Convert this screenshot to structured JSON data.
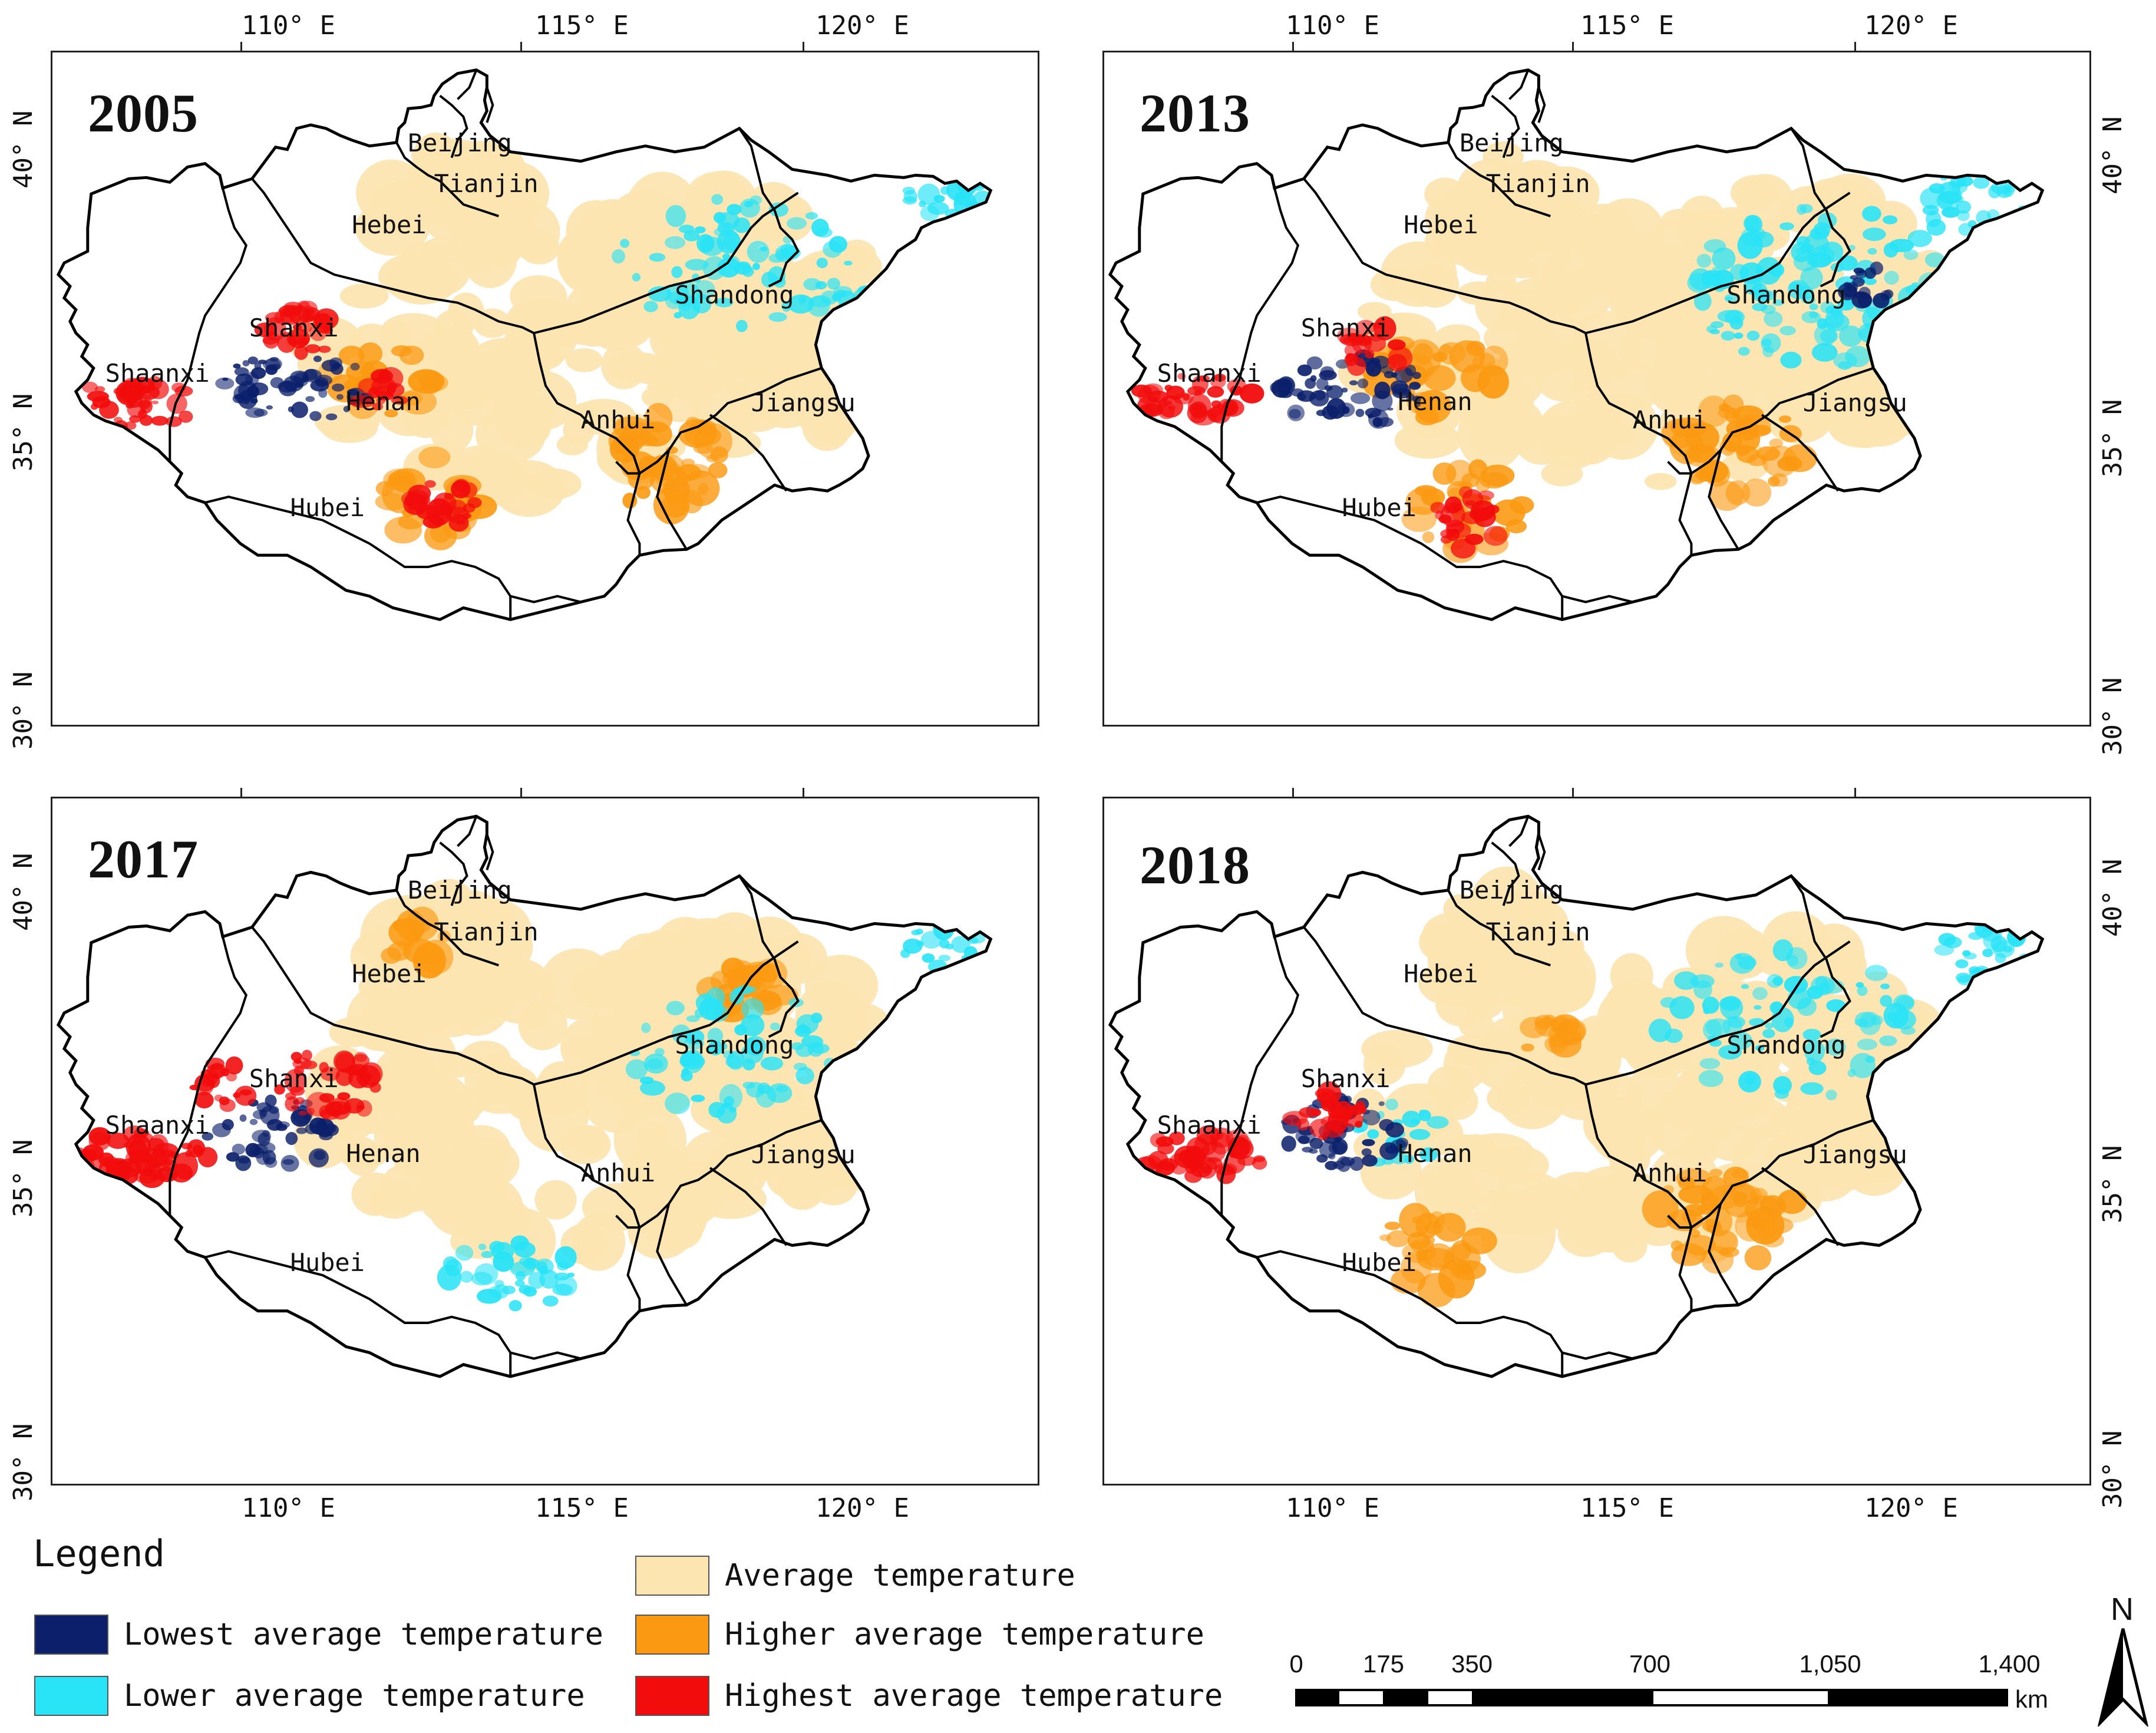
{
  "colors": {
    "lowest": "#0b1f6b",
    "lower": "#29e3f6",
    "average": "#fde5b2",
    "higher": "#fb9a12",
    "highest": "#f20c0c"
  },
  "axes": {
    "lon_ticks": [
      "110° E",
      "115° E",
      "120° E"
    ],
    "lat_ticks": [
      "40° N",
      "35° N",
      "30° N"
    ]
  },
  "panels": [
    {
      "year": "2005"
    },
    {
      "year": "2013"
    },
    {
      "year": "2017"
    },
    {
      "year": "2018"
    }
  ],
  "provinces": {
    "beijing": "Beijing",
    "tianjin": "Tianjin",
    "hebei": "Hebei",
    "shandong": "Shandong",
    "shanxi": "Shanxi",
    "shaanxi": "Shaanxi",
    "henan": "Henan",
    "jiangsu": "Jiangsu",
    "anhui": "Anhui",
    "hubei": "Hubei"
  },
  "legend": {
    "title": "Legend",
    "items": [
      {
        "key": "average",
        "label": "Average temperature"
      },
      {
        "key": "lowest",
        "label": "Lowest average temperature"
      },
      {
        "key": "higher",
        "label": "Higher average temperature"
      },
      {
        "key": "lower",
        "label": "Lower average temperature"
      },
      {
        "key": "highest",
        "label": "Highest average temperature"
      }
    ]
  },
  "scale_bar": {
    "labels": [
      "0",
      "175",
      "350",
      "700",
      "1,050",
      "1,400"
    ],
    "unit": "km"
  },
  "north_arrow": {
    "label": "N"
  }
}
